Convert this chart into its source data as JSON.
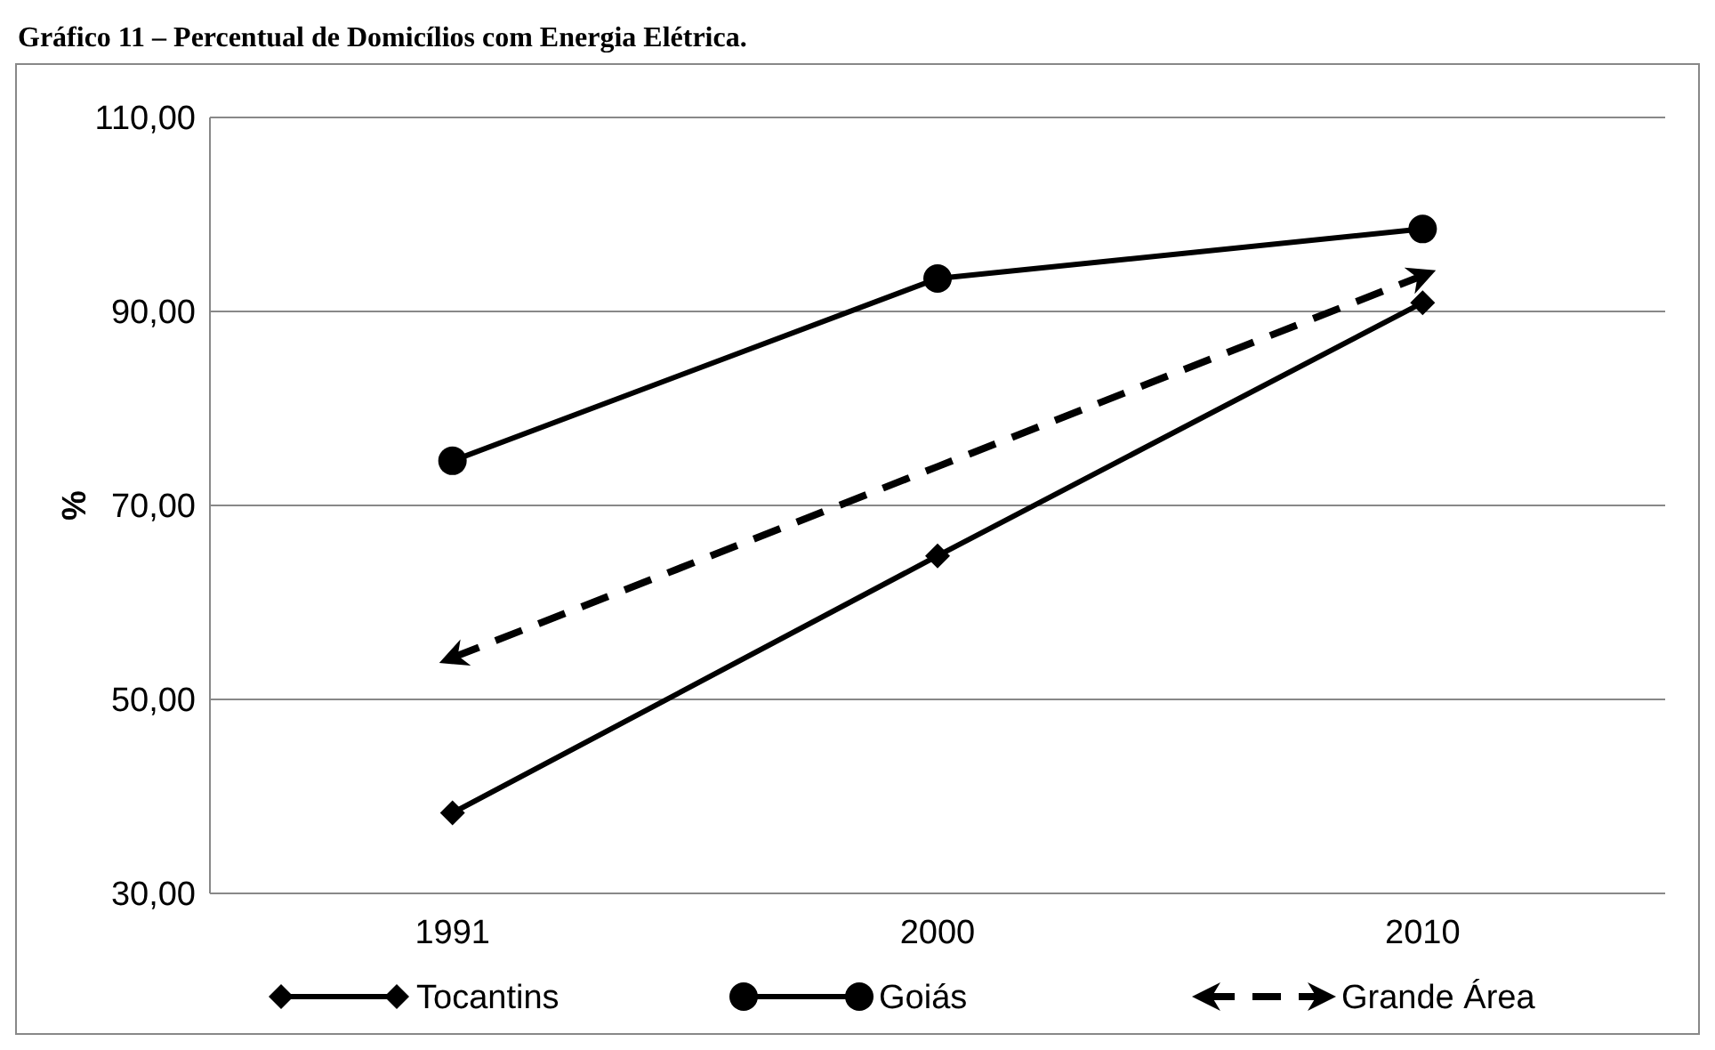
{
  "chart_data": {
    "type": "line",
    "title": "Gráfico 11 – Percentual de Domicílios com Energia Elétrica.",
    "ylabel": "%",
    "categories": [
      "1991",
      "2000",
      "2010"
    ],
    "series": [
      {
        "name": "Tocantins",
        "color": "#000000",
        "values": [
          38.3,
          64.8,
          90.9
        ],
        "marker": "diamond",
        "line_style": "solid"
      },
      {
        "name": "Goiás",
        "color": "#000000",
        "values": [
          74.6,
          93.4,
          98.5
        ],
        "marker": "circle",
        "line_style": "solid"
      },
      {
        "name": "Grande Área",
        "color": "#000000",
        "values": [
          54.3,
          74.0,
          93.7
        ],
        "marker": "none",
        "line_style": "dashed"
      }
    ],
    "ylim": [
      30,
      110
    ],
    "yticks": [
      {
        "value": 30,
        "label": "30,00"
      },
      {
        "value": 50,
        "label": "50,00"
      },
      {
        "value": 70,
        "label": "70,00"
      },
      {
        "value": 90,
        "label": "90,00"
      },
      {
        "value": 110,
        "label": "110,00"
      }
    ],
    "grid": "y",
    "legend": "bottom"
  }
}
